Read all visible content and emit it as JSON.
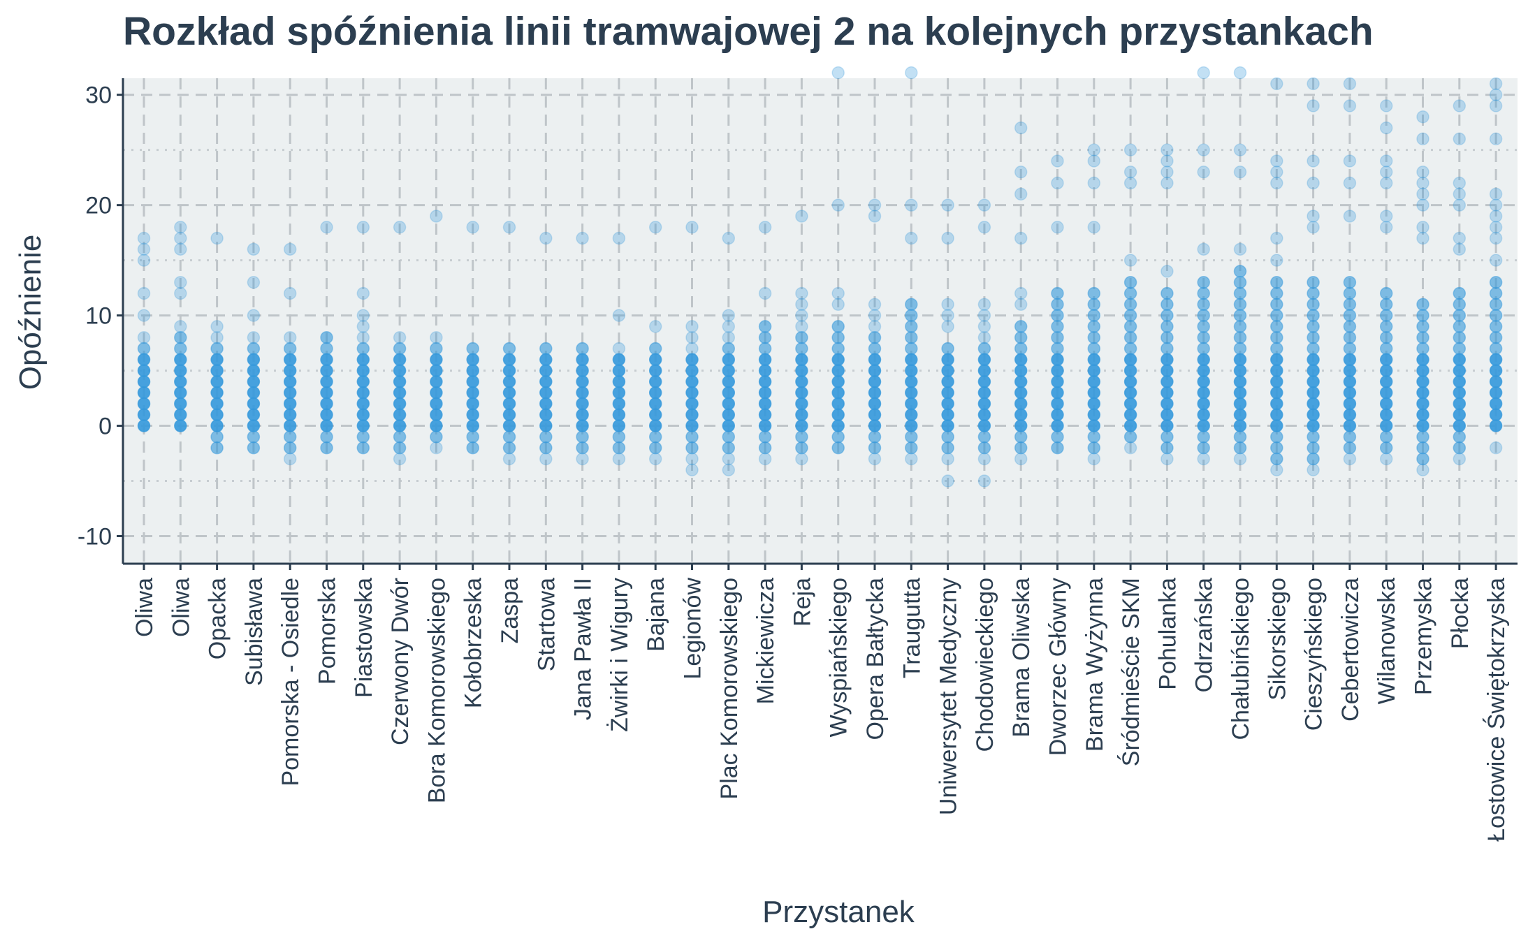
{
  "chart_data": {
    "type": "scatter",
    "title": "Rozkład spóźnienia linii tramwajowej 2 na kolejnych przystankach",
    "xlabel": "Przystanek",
    "ylabel": "Opóźnienie",
    "ylim": [
      -12.5,
      31.5
    ],
    "yticks": [
      -10,
      0,
      10,
      20,
      30
    ],
    "grid": true,
    "point_color": "#3498db",
    "panel_color": "#ecf0f1",
    "categories": [
      "Oliwa",
      "Oliwa",
      "Opacka",
      "Subisława",
      "Pomorska - Osiedle",
      "Pomorska",
      "Piastowska",
      "Czerwony Dwór",
      "Bora Komorowskiego",
      "Kołobrzeska",
      "Zaspa",
      "Startowa",
      "Jana Pawła II",
      "Żwirki i Wigury",
      "Bajana",
      "Legionów",
      "Plac Komorowskiego",
      "Mickiewicza",
      "Reja",
      "Wyspiańskiego",
      "Opera Bałtycka",
      "Traugutta",
      "Uniwersytet Medyczny",
      "Chodowieckiego",
      "Brama Oliwska",
      "Dworzec Główny",
      "Brama Wyżynna",
      "Śródmieście SKM",
      "Pohulanka",
      "Odrzańska",
      "Chałubińskiego",
      "Sikorskiego",
      "Cieszyńskiego",
      "Cebertowicza",
      "Wilanowska",
      "Przemyska",
      "Płocka",
      "Łostowice Świętokrzyska"
    ],
    "series": [
      {
        "x": "Oliwa",
        "range": [
          0,
          7
        ],
        "outliers": [
          8,
          10,
          12,
          15,
          16,
          17
        ]
      },
      {
        "x": "Oliwa",
        "range": [
          0,
          8
        ],
        "outliers": [
          9,
          12,
          13,
          16,
          17,
          18
        ]
      },
      {
        "x": "Opacka",
        "range": [
          -2,
          7
        ],
        "outliers": [
          8,
          9,
          17
        ]
      },
      {
        "x": "Subisława",
        "range": [
          -2,
          7
        ],
        "outliers": [
          8,
          10,
          13,
          16
        ]
      },
      {
        "x": "Pomorska - Osiedle",
        "range": [
          -2,
          7
        ],
        "outliers": [
          -3,
          8,
          12,
          16
        ]
      },
      {
        "x": "Pomorska",
        "range": [
          -2,
          8
        ],
        "outliers": [
          18
        ]
      },
      {
        "x": "Piastowska",
        "range": [
          -2,
          7
        ],
        "outliers": [
          8,
          9,
          10,
          12,
          18
        ]
      },
      {
        "x": "Czerwony Dwór",
        "range": [
          -2,
          7
        ],
        "outliers": [
          -3,
          8,
          18
        ]
      },
      {
        "x": "Bora Komorowskiego",
        "range": [
          -1,
          7
        ],
        "outliers": [
          -2,
          8,
          19
        ]
      },
      {
        "x": "Kołobrzeska",
        "range": [
          -2,
          7
        ],
        "outliers": [
          18
        ]
      },
      {
        "x": "Zaspa",
        "range": [
          -2,
          7
        ],
        "outliers": [
          -3,
          18
        ]
      },
      {
        "x": "Startowa",
        "range": [
          -2,
          7
        ],
        "outliers": [
          -3,
          17
        ]
      },
      {
        "x": "Jana Pawła II",
        "range": [
          -2,
          7
        ],
        "outliers": [
          -3,
          17
        ]
      },
      {
        "x": "Żwirki i Wigury",
        "range": [
          -2,
          6
        ],
        "outliers": [
          -3,
          7,
          10,
          17
        ]
      },
      {
        "x": "Bajana",
        "range": [
          -2,
          7
        ],
        "outliers": [
          -3,
          9,
          18
        ]
      },
      {
        "x": "Legionów",
        "range": [
          -2,
          6
        ],
        "outliers": [
          -4,
          -3,
          7,
          8,
          9,
          18
        ]
      },
      {
        "x": "Plac Komorowskiego",
        "range": [
          -2,
          7
        ],
        "outliers": [
          -4,
          -3,
          8,
          9,
          10,
          17
        ]
      },
      {
        "x": "Mickiewicza",
        "range": [
          -2,
          9
        ],
        "outliers": [
          -3,
          12,
          18
        ]
      },
      {
        "x": "Reja",
        "range": [
          -2,
          8
        ],
        "outliers": [
          -3,
          9,
          10,
          11,
          12,
          19
        ]
      },
      {
        "x": "Wyspiańskiego",
        "range": [
          -2,
          9
        ],
        "outliers": [
          11,
          12,
          20,
          32
        ]
      },
      {
        "x": "Opera Bałtycka",
        "range": [
          -2,
          8
        ],
        "outliers": [
          -3,
          9,
          10,
          11,
          19,
          20
        ]
      },
      {
        "x": "Traugutta",
        "range": [
          -2,
          11
        ],
        "outliers": [
          -3,
          17,
          20,
          32
        ]
      },
      {
        "x": "Uniwersytet Medyczny",
        "range": [
          -2,
          7
        ],
        "outliers": [
          -5,
          -3,
          9,
          10,
          11,
          17,
          20
        ]
      },
      {
        "x": "Chodowieckiego",
        "range": [
          -2,
          7
        ],
        "outliers": [
          -5,
          -3,
          8,
          9,
          10,
          11,
          18,
          20
        ]
      },
      {
        "x": "Brama Oliwska",
        "range": [
          -2,
          9
        ],
        "outliers": [
          -3,
          11,
          12,
          17,
          21,
          23,
          27
        ]
      },
      {
        "x": "Dworzec Główny",
        "range": [
          -2,
          12
        ],
        "outliers": [
          18,
          22,
          24
        ]
      },
      {
        "x": "Brama Wyżynna",
        "range": [
          -2,
          12
        ],
        "outliers": [
          -3,
          18,
          22,
          24,
          25
        ]
      },
      {
        "x": "Śródmieście SKM",
        "range": [
          -1,
          13
        ],
        "outliers": [
          -2,
          15,
          22,
          23,
          25
        ]
      },
      {
        "x": "Pohulanka",
        "range": [
          -2,
          12
        ],
        "outliers": [
          -3,
          14,
          22,
          23,
          24,
          25
        ]
      },
      {
        "x": "Odrzańska",
        "range": [
          -2,
          13
        ],
        "outliers": [
          -3,
          16,
          23,
          25,
          32
        ]
      },
      {
        "x": "Chałubińskiego",
        "range": [
          -2,
          14
        ],
        "outliers": [
          -3,
          16,
          23,
          25,
          32
        ]
      },
      {
        "x": "Sikorskiego",
        "range": [
          -3,
          13
        ],
        "outliers": [
          -4,
          15,
          17,
          22,
          23,
          24,
          31
        ]
      },
      {
        "x": "Cieszyńskiego",
        "range": [
          -3,
          13
        ],
        "outliers": [
          -4,
          18,
          19,
          22,
          24,
          29,
          31
        ]
      },
      {
        "x": "Cebertowicza",
        "range": [
          -2,
          13
        ],
        "outliers": [
          -3,
          19,
          22,
          24,
          29,
          31
        ]
      },
      {
        "x": "Wilanowska",
        "range": [
          -2,
          12
        ],
        "outliers": [
          -3,
          18,
          19,
          22,
          23,
          24,
          27,
          29
        ]
      },
      {
        "x": "Przemyska",
        "range": [
          -3,
          11
        ],
        "outliers": [
          -4,
          17,
          18,
          20,
          21,
          22,
          23,
          26,
          28
        ]
      },
      {
        "x": "Płocka",
        "range": [
          -2,
          12
        ],
        "outliers": [
          -3,
          16,
          17,
          20,
          21,
          22,
          26,
          29
        ]
      },
      {
        "x": "Łostowice Świętokrzyska",
        "range": [
          0,
          13
        ],
        "outliers": [
          -2,
          15,
          17,
          18,
          19,
          20,
          21,
          26,
          29,
          30,
          31
        ]
      }
    ]
  }
}
